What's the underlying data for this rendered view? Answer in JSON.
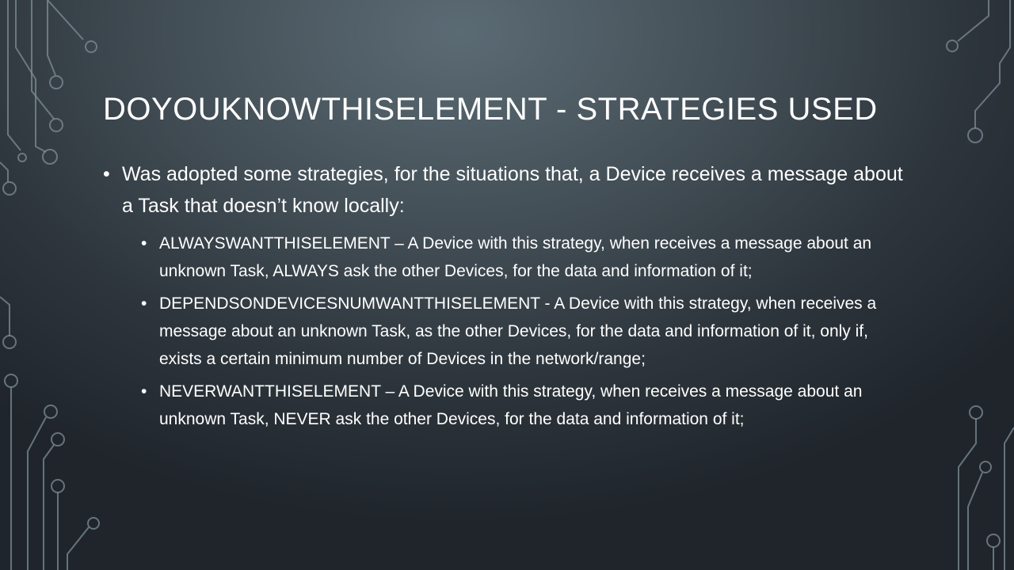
{
  "slide": {
    "title": "DOYOUKNOWTHISELEMENT - STRATEGIES USED",
    "intro": "Was adopted some strategies, for the situations that, a Device receives a message about a Task that doesn’t know locally:",
    "bullet_char": "•",
    "strategies": [
      {
        "text": "ALWAYSWANTTHISELEMENT – A Device with this strategy, when receives a message about an unknown Task, ALWAYS ask the other Devices, for the data and information of it;"
      },
      {
        "text": "DEPENDSONDEVICESNUMWANTTHISELEMENT - A Device with this strategy, when receives a message about an unknown Task, as the other Devices, for the data and information of it, only if, exists a certain minimum number of Devices in the network/range;"
      },
      {
        "text": "NEVERWANTTHISELEMENT – A Device with this strategy, when receives a message about an unknown Task, NEVER ask the other Devices, for the data and information of it;"
      }
    ]
  },
  "theme": {
    "text_color": "#ffffff",
    "background_center": "#5b6b74",
    "background_edge": "#1f252b",
    "circuit_color": "#7f8e97"
  }
}
